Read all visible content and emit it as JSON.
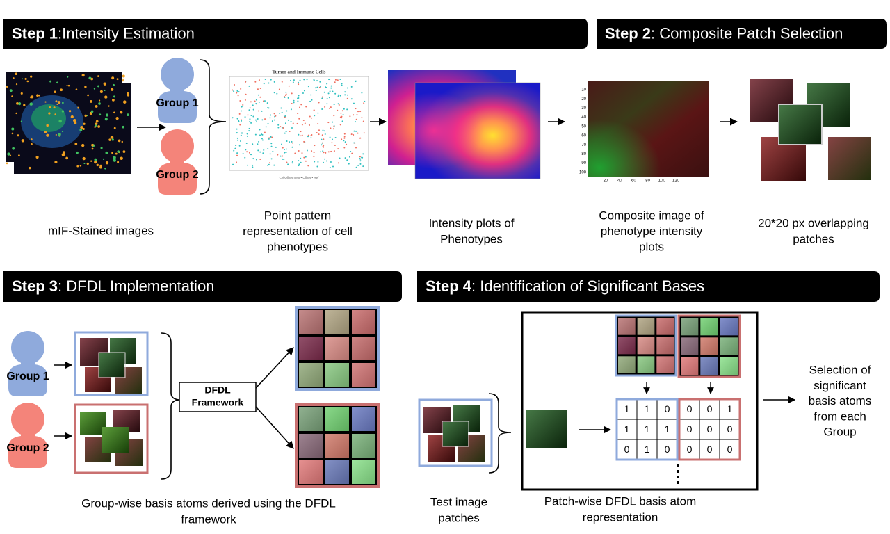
{
  "steps": [
    {
      "label": "Step 1",
      "title": ":Intensity Estimation"
    },
    {
      "label": "Step 2",
      "title": ": Composite Patch Selection"
    },
    {
      "label": "Step 3",
      "title": ": DFDL Implementation"
    },
    {
      "label": "Step 4",
      "title": ": Identification of Significant Bases"
    }
  ],
  "groups": [
    "Group 1",
    "Group 2"
  ],
  "point_plot": {
    "title": "Tumor and Immune Cells",
    "legend": "CellOffsetment  •  Offset  •  Ref"
  },
  "composite_axes": {
    "yticks": [
      10,
      20,
      30,
      40,
      50,
      60,
      70,
      80,
      90,
      100
    ],
    "xticks": [
      20,
      40,
      60,
      80,
      100,
      120
    ]
  },
  "captions": [
    [
      "mIF-Stained images"
    ],
    [
      "Point pattern",
      "representation of cell",
      "phenotypes"
    ],
    [
      "Intensity plots of",
      "Phenotypes"
    ],
    [
      "Composite image of",
      "phenotype intensity",
      "plots"
    ],
    [
      "20*20 px overlapping",
      "patches"
    ],
    [
      "Group-wise basis atoms derived using the DFDL",
      "framework"
    ],
    [
      "Test image",
      "patches"
    ],
    [
      "Patch-wise DFDL basis atom",
      "representation"
    ],
    [
      "Selection of",
      "significant",
      "basis atoms",
      "from each",
      "Group"
    ]
  ],
  "dfdl_box": [
    "DFDL",
    "Framework"
  ],
  "matrices": [
    [
      [
        1,
        1,
        0
      ],
      [
        1,
        1,
        1
      ],
      [
        0,
        1,
        0
      ]
    ],
    [
      [
        0,
        0,
        1
      ],
      [
        0,
        0,
        0
      ],
      [
        0,
        0,
        0
      ]
    ]
  ]
}
